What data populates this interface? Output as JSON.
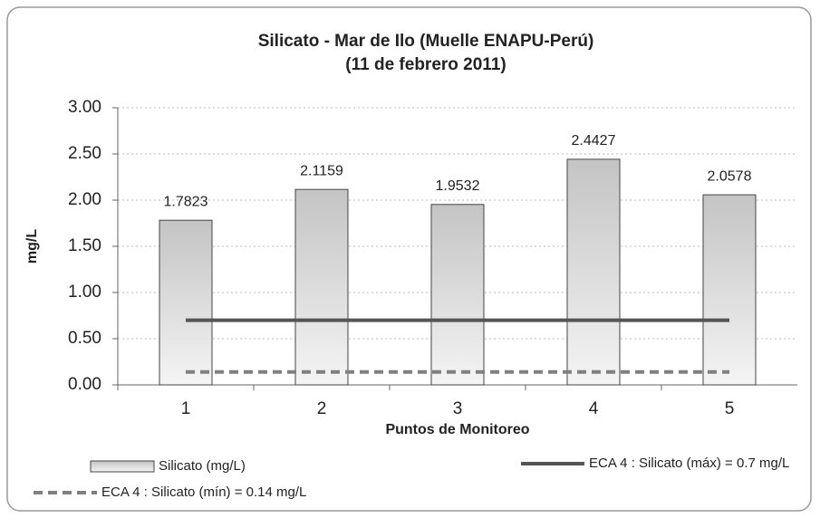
{
  "chart_data": {
    "type": "bar",
    "title": [
      "Silicato - Mar de Ilo (Muelle ENAPU-Perú)",
      "(11 de febrero 2011)"
    ],
    "xlabel": "Puntos de Monitoreo",
    "ylabel": "mg/L",
    "categories": [
      "1",
      "2",
      "3",
      "4",
      "5"
    ],
    "series": [
      {
        "name": "Silicato (mg/L)",
        "type": "bar",
        "color": "#c8c8c8",
        "values": [
          1.7823,
          2.1159,
          1.9532,
          2.4427,
          2.0578
        ]
      },
      {
        "name": "ECA 4 : Silicato (máx) = 0.7 mg/L",
        "type": "line",
        "color": "#555555",
        "values": [
          0.7,
          0.7,
          0.7,
          0.7,
          0.7
        ]
      },
      {
        "name": "ECA 4 : Silicato (mín) = 0.14 mg/L",
        "type": "line",
        "dashed": true,
        "color": "#808080",
        "values": [
          0.14,
          0.14,
          0.14,
          0.14,
          0.14
        ]
      }
    ],
    "ylim": [
      0,
      3
    ],
    "yticks": [
      {
        "value": 0,
        "label": "0.00"
      },
      {
        "value": 0.5,
        "label": "0.50"
      },
      {
        "value": 1,
        "label": "1.00"
      },
      {
        "value": 1.5,
        "label": "1.50"
      },
      {
        "value": 2,
        "label": "2.00"
      },
      {
        "value": 2.5,
        "label": "2.50"
      },
      {
        "value": 3,
        "label": "3.00"
      }
    ],
    "grid": true,
    "legend": "bottom"
  }
}
